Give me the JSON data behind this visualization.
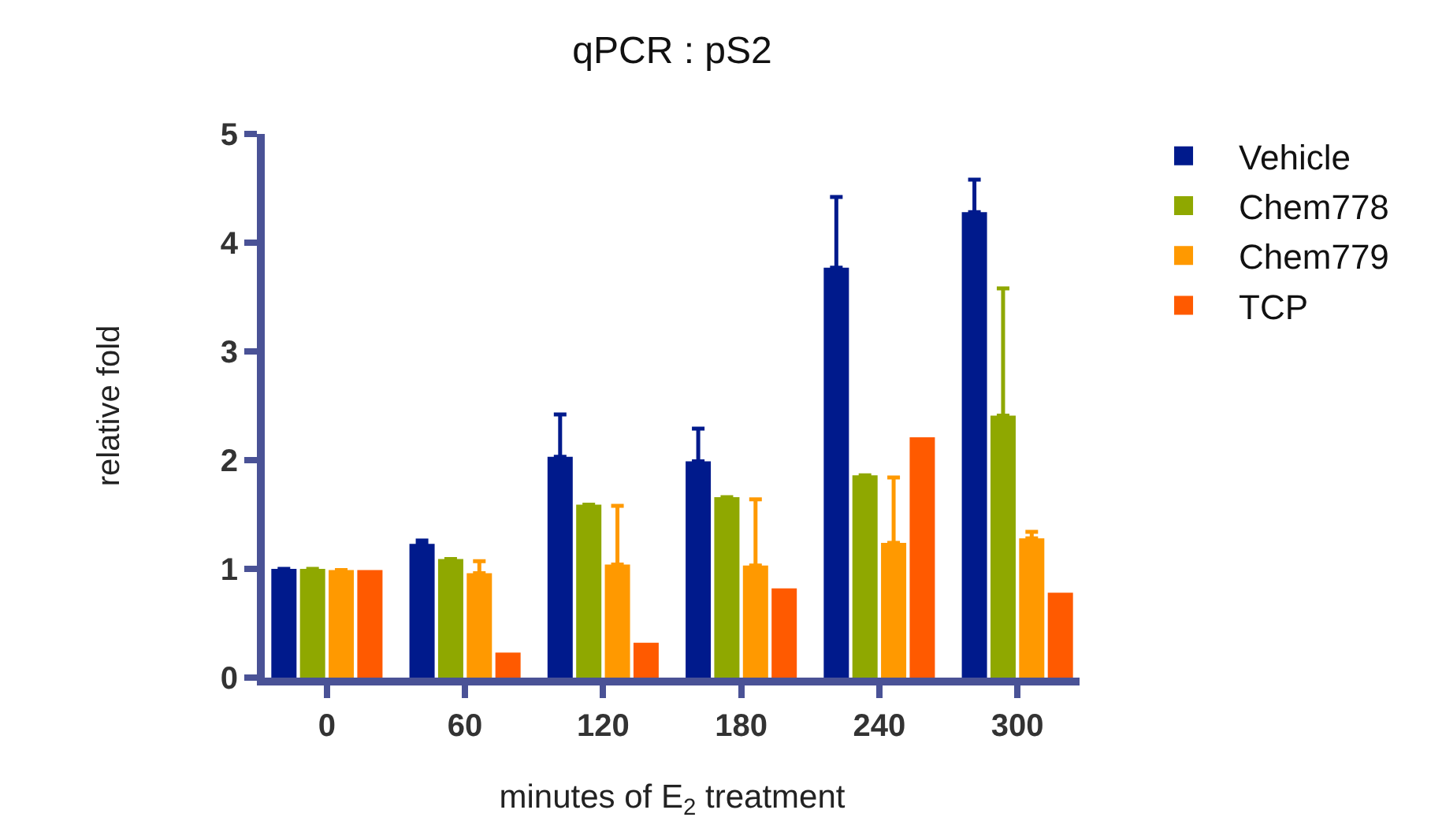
{
  "chart_data": {
    "type": "bar",
    "title": "qPCR : pS2",
    "xlabel": "minutes of E$_{2}$ treatment",
    "ylabel": "relative fold",
    "categories": [
      "0",
      "60",
      "120",
      "180",
      "240",
      "300"
    ],
    "series": [
      {
        "name": "Vehicle",
        "color": "#001a8c",
        "values": [
          1.0,
          1.23,
          2.03,
          1.99,
          3.77,
          4.28
        ],
        "errors": [
          null,
          [
            1.23,
            1.26
          ],
          [
            2.03,
            2.42
          ],
          [
            1.99,
            2.29
          ],
          [
            3.77,
            4.42
          ],
          [
            4.28,
            4.58
          ]
        ]
      },
      {
        "name": "Chem778",
        "color": "#8fa800",
        "values": [
          1.0,
          1.09,
          1.59,
          1.66,
          1.86,
          2.41
        ],
        "errors": [
          null,
          null,
          null,
          null,
          null,
          [
            2.41,
            3.58
          ]
        ]
      },
      {
        "name": "Chem779",
        "color": "#ff9900",
        "values": [
          0.99,
          0.96,
          1.04,
          1.03,
          1.24,
          1.28
        ],
        "errors": [
          null,
          [
            0.96,
            1.07
          ],
          [
            1.04,
            1.58
          ],
          [
            1.03,
            1.64
          ],
          [
            1.24,
            1.84
          ],
          [
            1.28,
            1.34
          ]
        ]
      },
      {
        "name": "TCP",
        "color": "#ff5a00",
        "values": [
          0.99,
          0.23,
          0.32,
          0.82,
          2.21,
          0.78
        ]
      }
    ],
    "ylim": [
      0,
      5
    ],
    "yticks": [
      0,
      1,
      2,
      3,
      4,
      5
    ],
    "grid": false,
    "legend": "top right"
  }
}
